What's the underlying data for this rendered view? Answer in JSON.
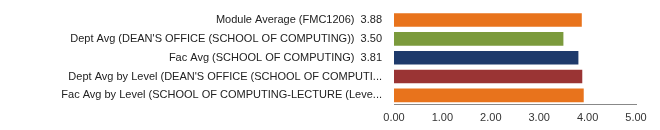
{
  "chart_data": {
    "type": "bar",
    "orientation": "horizontal",
    "categories": [
      "Module Average (FMC1206)  3.88",
      "Dept Avg (DEAN'S OFFICE (SCHOOL OF COMPUTING))  3.50",
      "Fac Avg (SCHOOL OF COMPUTING)  3.81",
      "Dept Avg by Level (DEAN'S OFFICE (SCHOOL OF COMPUTI...",
      "Fac Avg by Level (SCHOOL OF COMPUTING-LECTURE (Leve..."
    ],
    "values": [
      3.88,
      3.5,
      3.81,
      3.89,
      3.92
    ],
    "colors": [
      "#e8731c",
      "#7b9a3c",
      "#1e3a6b",
      "#9a3434",
      "#e8731c"
    ],
    "xlim": [
      0,
      5
    ],
    "xticks": [
      {
        "value": 0,
        "label": "0.00"
      },
      {
        "value": 1,
        "label": "1.00"
      },
      {
        "value": 2,
        "label": "2.00"
      },
      {
        "value": 3,
        "label": "3.00"
      },
      {
        "value": 4,
        "label": "4.00"
      },
      {
        "value": 5,
        "label": "5.00"
      }
    ],
    "grid": false,
    "legend": false
  }
}
